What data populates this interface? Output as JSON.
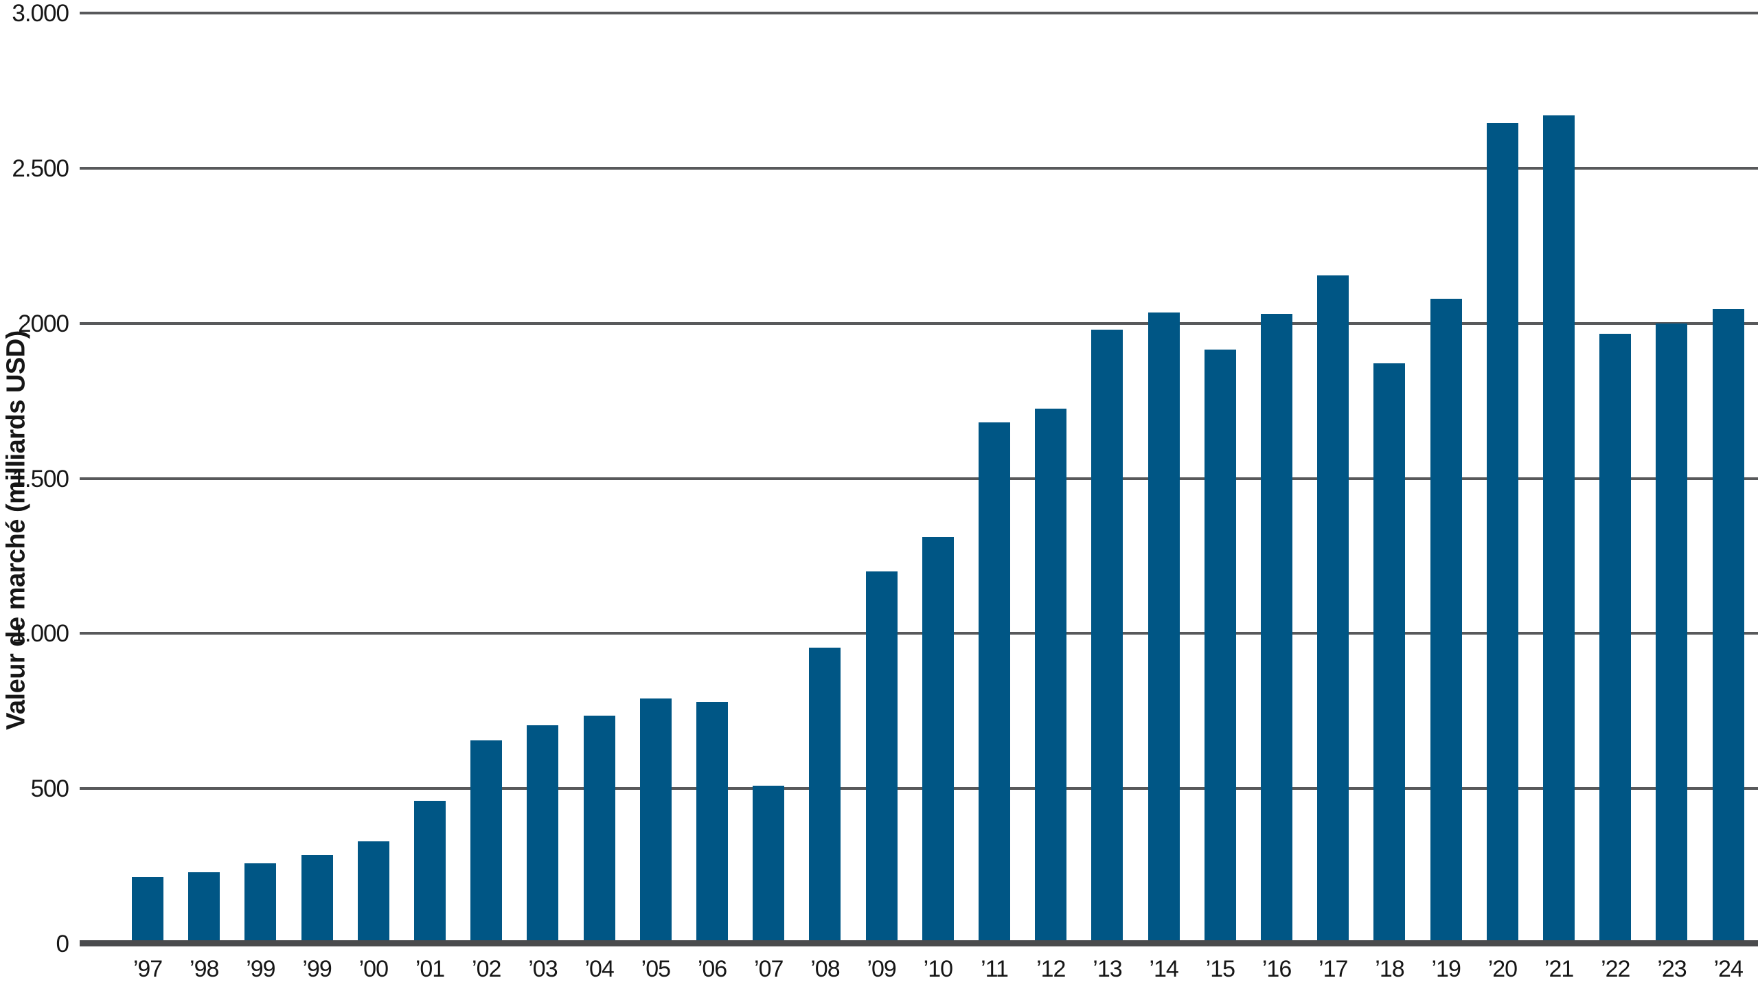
{
  "chart_data": {
    "type": "bar",
    "title": "",
    "xlabel": "",
    "ylabel": "Valeur de marché (milliards USD)",
    "categories": [
      "’97",
      "’98",
      "’99",
      "’99",
      "’00",
      "’01",
      "’02",
      "’03",
      "’04",
      "’05",
      "’06",
      "’07",
      "’08",
      "’09",
      "’10",
      "’11",
      "’12",
      "’13",
      "’14",
      "’15",
      "’16",
      "’17",
      "’18",
      "’19",
      "’20",
      "’21",
      "’22",
      "’23",
      "’24"
    ],
    "values": [
      215,
      230,
      260,
      285,
      330,
      460,
      655,
      705,
      735,
      790,
      780,
      510,
      955,
      1200,
      1310,
      1680,
      1725,
      1980,
      2035,
      1915,
      2030,
      2155,
      1870,
      2080,
      2645,
      2670,
      1965,
      2000,
      2045
    ],
    "ylim": [
      0,
      3000
    ],
    "y_ticks": [
      {
        "label": "3.000",
        "value": 3000
      },
      {
        "label": "2.500",
        "value": 2500
      },
      {
        "label": "2000",
        "value": 2000
      },
      {
        "label": "1.500",
        "value": 1500
      },
      {
        "label": "1.000",
        "value": 1000
      },
      {
        "label": "500",
        "value": 500
      },
      {
        "label": "0",
        "value": 0
      }
    ],
    "grid": true,
    "legend": false,
    "bar_color": "#005685",
    "gridline_color": "#58595b",
    "axis_color": "#4a4b4d",
    "text_color": "#161616",
    "background": "#ffffff"
  }
}
